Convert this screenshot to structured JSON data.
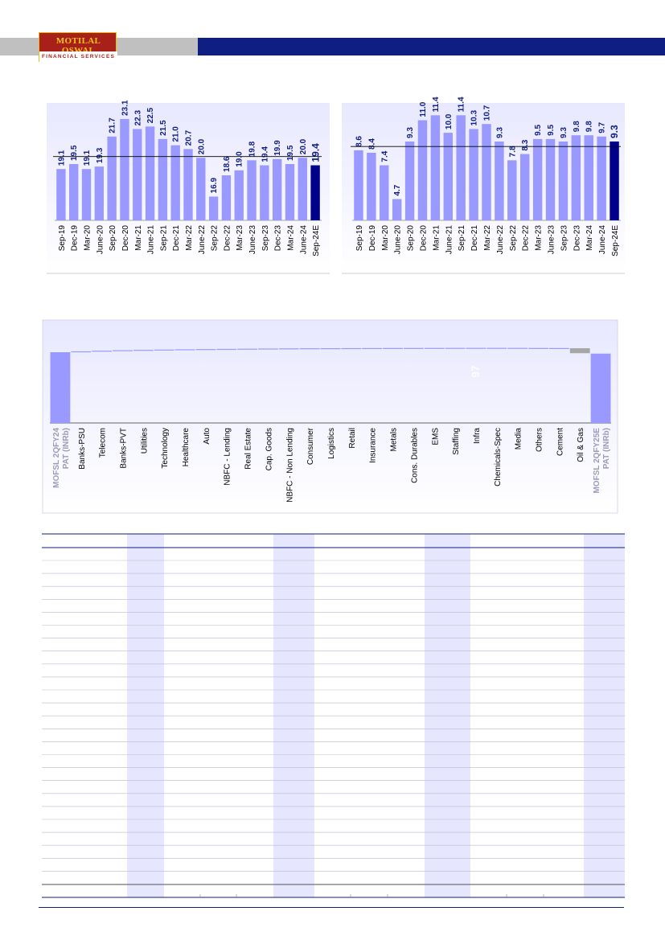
{
  "header": {
    "logo_line1": "MOTILAL OSWAL",
    "logo_line2": "FINANCIAL SERVICES",
    "colors": {
      "brand_blue": "#0e1e82",
      "brand_red": "#a8201a",
      "brand_gold": "#f3c41a"
    }
  },
  "chart_data": [
    {
      "type": "bar",
      "categories": [
        "Sep-19",
        "Dec-19",
        "Mar-20",
        "June-20",
        "Sep-20",
        "Dec-20",
        "Mar-21",
        "June-21",
        "Sep-21",
        "Dec-21",
        "Mar-22",
        "June-22",
        "Sep-22",
        "Dec-22",
        "Mar-23",
        "June-23",
        "Sep-23",
        "Dec-23",
        "Mar-24",
        "June-24",
        "Sep-24E"
      ],
      "values": [
        19.1,
        19.5,
        19.1,
        19.3,
        21.7,
        23.1,
        22.3,
        22.5,
        21.5,
        21.0,
        20.7,
        20.0,
        16.9,
        18.6,
        19.0,
        19.8,
        19.4,
        19.9,
        19.5,
        20.0,
        19.4
      ],
      "labels": [
        "19.1",
        "19.5",
        "19.1",
        "19.3",
        "21.7",
        "23.1",
        "22.3",
        "22.5",
        "21.5",
        "21.0",
        "20.7",
        "20.0",
        "16.9",
        "18.6",
        "19.0",
        "19.8",
        "19.4",
        "19.9",
        "19.5",
        "20.0",
        "19.4"
      ],
      "ylim": [
        15,
        24
      ],
      "average_line": 20.1,
      "highlight_last": true,
      "colors": {
        "bar": "#9999ff",
        "highlight": "#00008b",
        "label": "#0e1e82"
      }
    },
    {
      "type": "bar",
      "categories": [
        "Sep-19",
        "Dec-19",
        "Mar-20",
        "June-20",
        "Sep-20",
        "Dec-20",
        "Mar-21",
        "June-21",
        "Sep-21",
        "Dec-21",
        "Mar-22",
        "June-22",
        "Sep-22",
        "Dec-22",
        "Mar-23",
        "June-23",
        "Sep-23",
        "Dec-23",
        "Mar-24",
        "June-24",
        "Sep-24E"
      ],
      "values": [
        8.6,
        8.4,
        7.4,
        4.7,
        9.3,
        11.0,
        11.4,
        10.0,
        11.4,
        10.3,
        10.7,
        9.3,
        7.8,
        8.3,
        9.5,
        9.5,
        9.3,
        9.8,
        9.8,
        9.7,
        9.3
      ],
      "labels": [
        "8.6",
        "8.4",
        "7.4",
        "4.7",
        "9.3",
        "11.0",
        "11.4",
        "10.0",
        "11.4",
        "10.3",
        "10.7",
        "9.3",
        "7.8",
        "8.3",
        "9.5",
        "9.5",
        "9.3",
        "9.8",
        "9.8",
        "9.7",
        "9.3"
      ],
      "ylim": [
        3,
        12
      ],
      "average_line": 8.9,
      "highlight_last": true,
      "colors": {
        "bar": "#9999ff",
        "highlight": "#00008b",
        "label": "#0e1e82"
      }
    },
    {
      "type": "bar",
      "categories": [
        "MOFSL 2QFY24 PAT (INRb)",
        "Banks-PSU",
        "Telecom",
        "Banks-PVT",
        "Utilities",
        "Technology",
        "Healthcare",
        "Auto",
        "NBFC - Lending",
        "Real Estate",
        "Cap. Goods",
        "NBFC - Non Lending",
        "Consumer",
        "Logistics",
        "Retail",
        "Insurance",
        "Metals",
        "Cons. Durables",
        "EMS",
        "Staffing",
        "Infra",
        "Chemicals-Spec",
        "Media",
        "Others",
        "Cement",
        "Oil & Gas",
        "MOFSL 2QFY25E PAT (INRb)"
      ],
      "values": [
        100,
        1.2,
        0.9,
        0.7,
        0.5,
        0.4,
        0.4,
        0.3,
        0.3,
        0.25,
        0.25,
        0.2,
        0.15,
        0.1,
        0.1,
        0.1,
        0.1,
        0.05,
        0.05,
        0.05,
        0.05,
        -0.05,
        -0.1,
        -0.1,
        -0.3,
        -7.0,
        98.0
      ],
      "faded_label": "97",
      "colors": {
        "bar": "#9999ff",
        "negative": "#a6a6a6",
        "background": "#e6e6ff"
      }
    }
  ]
}
